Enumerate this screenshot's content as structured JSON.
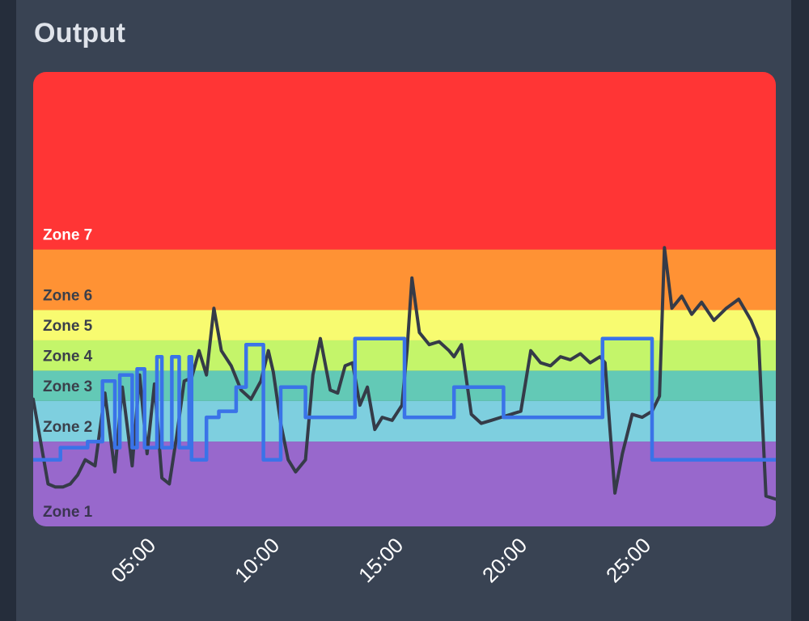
{
  "header": {
    "title": "Output"
  },
  "colors": {
    "page_background": "#252d3b",
    "panel_background": "#394353",
    "raw_line": "#353b48",
    "smooth_line": "#3a73e8"
  },
  "chart_data": {
    "type": "line",
    "title": "",
    "xlabel": "",
    "ylabel": "",
    "x_unit": "minutes",
    "x_tick_labels": [
      "05:00",
      "10:00",
      "15:00",
      "20:00",
      "25:00"
    ],
    "x_tick_values": [
      5,
      10,
      15,
      20,
      25
    ],
    "xlim": [
      0,
      30
    ],
    "ylim": [
      0,
      750
    ],
    "grid": false,
    "zones": [
      {
        "name": "Zone 1",
        "from": 0,
        "to": 140,
        "color": "#9868cc",
        "label_color": "#3a3550"
      },
      {
        "name": "Zone 2",
        "from": 140,
        "to": 207,
        "color": "#7ecfdf",
        "label_color": "#3a3f4a"
      },
      {
        "name": "Zone 3",
        "from": 207,
        "to": 257,
        "color": "#63c9b6",
        "label_color": "#3a3f4a"
      },
      {
        "name": "Zone 4",
        "from": 257,
        "to": 307,
        "color": "#c4f56a",
        "label_color": "#3a3f4a"
      },
      {
        "name": "Zone 5",
        "from": 307,
        "to": 357,
        "color": "#f8fb70",
        "label_color": "#3a3f4a"
      },
      {
        "name": "Zone 6",
        "from": 357,
        "to": 457,
        "color": "#ff9234",
        "label_color": "#3a3f4a"
      },
      {
        "name": "Zone 7",
        "from": 457,
        "to": 750,
        "color": "#ff3535",
        "label_color": "#ffffff"
      }
    ],
    "series": [
      {
        "key": "raw",
        "x": [
          0,
          0.3,
          0.6,
          0.9,
          1.2,
          1.5,
          1.8,
          2.1,
          2.5,
          2.9,
          3.3,
          3.6,
          4.0,
          4.3,
          4.6,
          4.9,
          5.2,
          5.5,
          5.8,
          6.1,
          6.4,
          6.7,
          7.0,
          7.3,
          7.6,
          8.0,
          8.4,
          8.8,
          9.2,
          9.5,
          9.7,
          10.0,
          10.3,
          10.6,
          11.0,
          11.3,
          11.6,
          12.0,
          12.3,
          12.6,
          12.9,
          13.2,
          13.5,
          13.8,
          14.1,
          14.5,
          14.9,
          15.1,
          15.3,
          15.6,
          16.0,
          16.4,
          16.8,
          17.0,
          17.3,
          17.7,
          18.1,
          18.5,
          18.9,
          19.3,
          19.7,
          20.1,
          20.5,
          20.9,
          21.3,
          21.7,
          22.1,
          22.5,
          22.9,
          23.1,
          23.3,
          23.5,
          23.8,
          24.2,
          24.6,
          25.0,
          25.3,
          25.5,
          25.8,
          26.2,
          26.6,
          27.0,
          27.5,
          28.0,
          28.5,
          29.0,
          29.3,
          29.6,
          30.0
        ],
        "y": [
          210,
          140,
          70,
          65,
          65,
          70,
          85,
          110,
          100,
          220,
          90,
          230,
          100,
          250,
          120,
          235,
          80,
          70,
          150,
          240,
          245,
          290,
          250,
          360,
          290,
          265,
          225,
          210,
          240,
          290,
          255,
          170,
          110,
          90,
          110,
          250,
          310,
          225,
          220,
          265,
          270,
          200,
          230,
          160,
          180,
          175,
          200,
          290,
          410,
          320,
          300,
          305,
          290,
          280,
          300,
          185,
          170,
          175,
          180,
          185,
          190,
          290,
          270,
          265,
          280,
          275,
          285,
          270,
          280,
          270,
          160,
          55,
          120,
          185,
          180,
          190,
          215,
          460,
          360,
          380,
          350,
          370,
          340,
          360,
          375,
          340,
          310,
          50,
          45
        ]
      },
      {
        "key": "smooth",
        "x": [
          0,
          1.1,
          1.1,
          2.2,
          2.2,
          2.8,
          2.8,
          3.3,
          3.3,
          3.5,
          3.5,
          4.0,
          4.0,
          4.2,
          4.2,
          4.5,
          4.5,
          5.0,
          5.0,
          5.2,
          5.2,
          5.6,
          5.6,
          5.9,
          5.9,
          6.3,
          6.3,
          6.4,
          6.4,
          7.0,
          7.0,
          7.5,
          7.5,
          8.2,
          8.2,
          8.6,
          8.6,
          9.3,
          9.3,
          10.0,
          10.0,
          11.0,
          11.0,
          13.0,
          13.0,
          15.0,
          15.0,
          17.0,
          17.0,
          19.0,
          19.0,
          23.0,
          23.0,
          25.0,
          25.0,
          29.0,
          29.0,
          30.0
        ],
        "y": [
          110,
          110,
          130,
          130,
          140,
          140,
          240,
          240,
          130,
          130,
          250,
          250,
          130,
          130,
          260,
          260,
          130,
          130,
          280,
          280,
          130,
          130,
          280,
          280,
          130,
          130,
          280,
          280,
          110,
          110,
          180,
          180,
          190,
          190,
          230,
          230,
          300,
          300,
          110,
          110,
          230,
          230,
          180,
          180,
          310,
          310,
          180,
          180,
          230,
          230,
          180,
          180,
          310,
          310,
          110,
          110,
          110,
          110
        ]
      }
    ]
  }
}
